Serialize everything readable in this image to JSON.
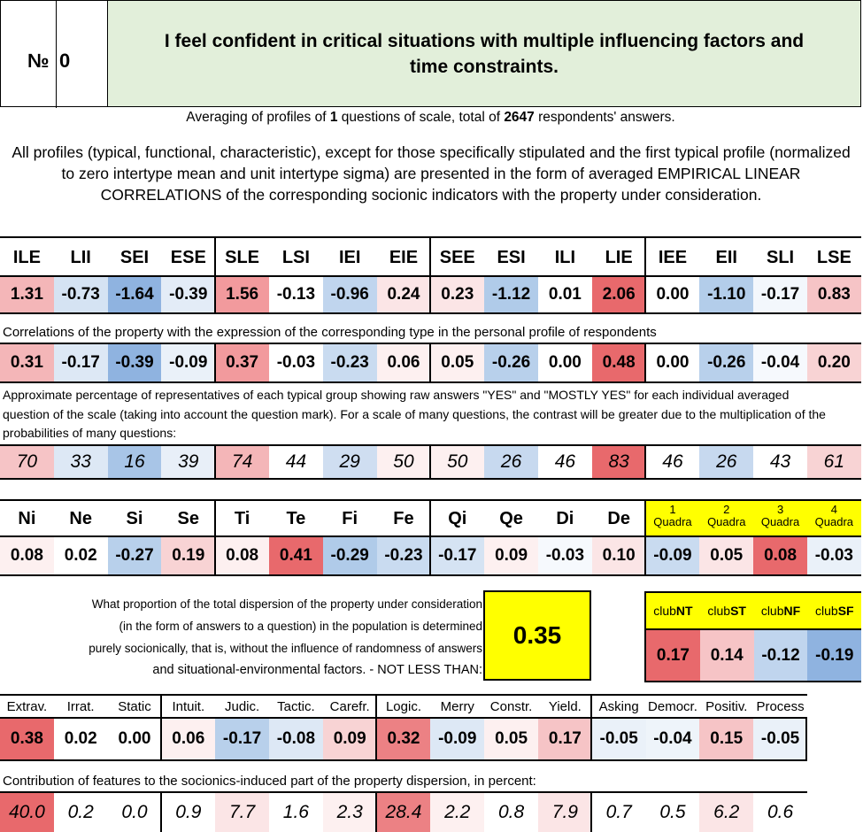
{
  "header": {
    "number_label": "№",
    "number_value": "0",
    "title": "I feel confident in critical situations with multiple influencing factors and time constraints."
  },
  "averaging": {
    "prefix": "Averaging of profiles of ",
    "questions": "1",
    "middle": " questions of scale, total of ",
    "respondents": "2647",
    "suffix": " respondents' answers."
  },
  "description": "All profiles (typical, functional, characteristic), except for those specifically stipulated and the first typical profile (normalized to zero intertype mean and unit intertype sigma) are presented in the form of averaged EMPIRICAL LINEAR CORRELATIONS of the corresponding socionic indicators with the property under consideration.",
  "types": {
    "headers": [
      "ILE",
      "LII",
      "SEI",
      "ESE",
      "SLE",
      "LSI",
      "IEI",
      "EIE",
      "SEE",
      "ESI",
      "ILI",
      "LIE",
      "IEE",
      "EII",
      "SLI",
      "LSE"
    ],
    "profile": [
      "1.31",
      "-0.73",
      "-1.64",
      "-0.39",
      "1.56",
      "-0.13",
      "-0.96",
      "0.24",
      "0.23",
      "-1.12",
      "0.01",
      "2.06",
      "0.00",
      "-1.10",
      "-0.17",
      "0.83"
    ],
    "profile_colors": [
      "#f4b6b8",
      "#d5e3f3",
      "#8fb3e0",
      "#e3ecf7",
      "#f29a9d",
      "#fff",
      "#c0d5ee",
      "#fbe5e6",
      "#fbe5e6",
      "#b0cbe9",
      "#fff",
      "#e8696c",
      "#fff",
      "#b3cdea",
      "#f3f7fc",
      "#f6c4c6"
    ],
    "corr_note": "Correlations of the property with the expression of the corresponding type in the personal profile of respondents",
    "corr": [
      "0.31",
      "-0.17",
      "-0.39",
      "-0.09",
      "0.37",
      "-0.03",
      "-0.23",
      "0.06",
      "0.05",
      "-0.26",
      "0.00",
      "0.48",
      "0.00",
      "-0.26",
      "-0.04",
      "0.20"
    ],
    "corr_colors": [
      "#f4b6b8",
      "#dde8f5",
      "#8fb3e0",
      "#eaf1f9",
      "#f29a9d",
      "#fff",
      "#c9dbf0",
      "#fdf0f0",
      "#fdf0f0",
      "#b8d0eb",
      "#fff",
      "#e8696c",
      "#fff",
      "#b8d0eb",
      "#f6f9fd",
      "#f8d3d4"
    ],
    "pct_note": "Approximate percentage of representatives of each typical group showing raw answers \"YES\" and \"MOSTLY YES\" for each individual averaged question of the scale (taking into account the question mark). For a scale of many questions, the contrast will be greater due to the multiplication of the probabilities of many questions:",
    "pct": [
      "70",
      "33",
      "16",
      "39",
      "74",
      "44",
      "29",
      "50",
      "50",
      "26",
      "46",
      "83",
      "46",
      "26",
      "43",
      "61"
    ],
    "pct_colors": [
      "#f6c4c6",
      "#dde8f5",
      "#a8c5e7",
      "#e8eff8",
      "#f4b6b8",
      "#fff",
      "#cfdef1",
      "#fdf0f0",
      "#fdf0f0",
      "#c7d9ef",
      "#fff",
      "#e8696c",
      "#fff",
      "#c7d9ef",
      "#fff",
      "#f8d3d4"
    ]
  },
  "functions": {
    "headers": [
      "Ni",
      "Ne",
      "Si",
      "Se",
      "Ti",
      "Te",
      "Fi",
      "Fe",
      "Qi",
      "Qe",
      "Di",
      "De"
    ],
    "values": [
      "0.08",
      "0.02",
      "-0.27",
      "0.19",
      "0.08",
      "0.41",
      "-0.29",
      "-0.23",
      "-0.17",
      "0.09",
      "-0.03",
      "0.10"
    ],
    "colors": [
      "#fdf0f0",
      "#fff",
      "#b8d0eb",
      "#f8d3d4",
      "#fdf0f0",
      "#e8696c",
      "#b0cbe9",
      "#c9dbf0",
      "#d5e3f3",
      "#fdf0f0",
      "#f6f9fd",
      "#fbe5e6"
    ],
    "quadras": [
      {
        "num": "1",
        "label": "Quadra",
        "value": "-0.09",
        "color": "#c9dbf0"
      },
      {
        "num": "2",
        "label": "Quadra",
        "value": "0.05",
        "color": "#fbe5e6"
      },
      {
        "num": "3",
        "label": "Quadra",
        "value": "0.08",
        "color": "#e8696c"
      },
      {
        "num": "4",
        "label": "Quadra",
        "value": "-0.03",
        "color": "#eaf1f9"
      }
    ]
  },
  "dispersion": {
    "text_lines": [
      "What proportion of the total dispersion of the property under consideration",
      "(in the form of answers to a question) in the population is determined",
      "purely socionically, that is, without the influence of randomness of answers",
      "and situational-environmental factors. - NOT LESS THAN:"
    ],
    "value": "0.35"
  },
  "clubs": [
    {
      "prefix": "club",
      "name": "NT",
      "value": "0.17",
      "color": "#e8696c"
    },
    {
      "prefix": "club",
      "name": "ST",
      "value": "0.14",
      "color": "#f6c4c6"
    },
    {
      "prefix": "club",
      "name": "NF",
      "value": "-0.12",
      "color": "#c0d5ee"
    },
    {
      "prefix": "club",
      "name": "SF",
      "value": "-0.19",
      "color": "#8fb3e0"
    }
  ],
  "features": {
    "headers": [
      "Extrav.",
      "Irrat.",
      "Static",
      "Intuit.",
      "Judic.",
      "Tactic.",
      "Carefr.",
      "Logic.",
      "Merry",
      "Constr.",
      "Yield.",
      "Asking",
      "Democr.",
      "Positiv.",
      "Process"
    ],
    "values": [
      "0.38",
      "0.02",
      "0.00",
      "0.06",
      "-0.17",
      "-0.08",
      "0.09",
      "0.32",
      "-0.09",
      "0.05",
      "0.17",
      "-0.05",
      "-0.04",
      "0.15",
      "-0.05"
    ],
    "colors": [
      "#e8696c",
      "#fff",
      "#fff",
      "#fdf0f0",
      "#b8d0eb",
      "#dde8f5",
      "#f8d3d4",
      "#ec8184",
      "#dde8f5",
      "#fdf0f0",
      "#f6c4c6",
      "#eaf1f9",
      "#eef4fa",
      "#f6c4c6",
      "#eaf1f9"
    ],
    "contrib_note": "Contribution of features to the socionics-induced part of the property dispersion, in percent:",
    "contrib": [
      "40.0",
      "0.2",
      "0.0",
      "0.9",
      "7.7",
      "1.6",
      "2.3",
      "28.4",
      "2.2",
      "0.8",
      "7.9",
      "0.7",
      "0.5",
      "6.2",
      "0.6"
    ],
    "contrib_colors": [
      "#e8696c",
      "#fff",
      "#fff",
      "#fff",
      "#fbe5e6",
      "#fff",
      "#fdf0f0",
      "#ec8184",
      "#fdf0f0",
      "#fff",
      "#fbe5e6",
      "#fff",
      "#fff",
      "#fbe5e6",
      "#fff"
    ]
  }
}
